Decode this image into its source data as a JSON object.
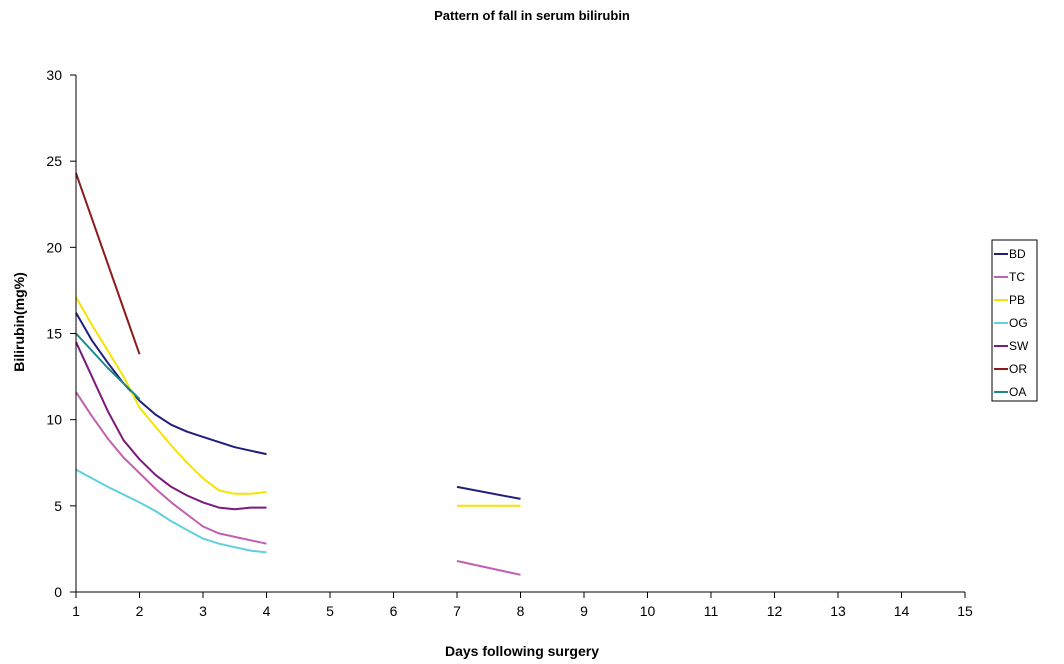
{
  "chart_data": {
    "type": "line",
    "title": "Pattern of fall in serum bilirubin",
    "xlabel": "Days following surgery",
    "ylabel": "Bilirubin(mg%)",
    "xlim": [
      1,
      15
    ],
    "ylim": [
      0,
      30
    ],
    "x_ticks": [
      1,
      2,
      3,
      4,
      5,
      6,
      7,
      8,
      9,
      10,
      11,
      12,
      13,
      14,
      15
    ],
    "y_ticks": [
      0,
      5,
      10,
      15,
      20,
      25,
      30
    ],
    "grid": false,
    "legend": "right",
    "series": [
      {
        "name": "BD",
        "color": "#1f1f7a",
        "segments": [
          [
            [
              1,
              16.2
            ],
            [
              1.25,
              14.6
            ],
            [
              1.5,
              13.3
            ],
            [
              1.75,
              12.1
            ],
            [
              2,
              11.1
            ],
            [
              2.25,
              10.3
            ],
            [
              2.5,
              9.7
            ],
            [
              2.75,
              9.3
            ],
            [
              3,
              9.0
            ],
            [
              3.25,
              8.7
            ],
            [
              3.5,
              8.4
            ],
            [
              3.75,
              8.2
            ],
            [
              4,
              8.0
            ]
          ],
          [
            [
              7,
              6.1
            ],
            [
              8,
              5.4
            ]
          ]
        ]
      },
      {
        "name": "TC",
        "color": "#c060b0",
        "segments": [
          [
            [
              1,
              11.6
            ],
            [
              1.25,
              10.2
            ],
            [
              1.5,
              8.9
            ],
            [
              1.75,
              7.8
            ],
            [
              2,
              6.9
            ],
            [
              2.25,
              6.0
            ],
            [
              2.5,
              5.2
            ],
            [
              2.75,
              4.5
            ],
            [
              3,
              3.8
            ],
            [
              3.25,
              3.4
            ],
            [
              3.5,
              3.2
            ],
            [
              3.75,
              3.0
            ],
            [
              4,
              2.8
            ]
          ],
          [
            [
              7,
              1.8
            ],
            [
              8,
              1.0
            ]
          ]
        ]
      },
      {
        "name": "PB",
        "color": "#f5e400",
        "segments": [
          [
            [
              1,
              17.1
            ],
            [
              1.25,
              15.5
            ],
            [
              1.5,
              14.0
            ],
            [
              1.75,
              12.5
            ],
            [
              2,
              10.7
            ],
            [
              2.25,
              9.6
            ],
            [
              2.5,
              8.5
            ],
            [
              2.75,
              7.5
            ],
            [
              3,
              6.6
            ],
            [
              3.25,
              5.9
            ],
            [
              3.5,
              5.7
            ],
            [
              3.75,
              5.7
            ],
            [
              4,
              5.8
            ]
          ],
          [
            [
              7,
              5.0
            ],
            [
              8,
              5.0
            ]
          ]
        ]
      },
      {
        "name": "OG",
        "color": "#5fd0dc",
        "segments": [
          [
            [
              1,
              7.1
            ],
            [
              1.5,
              6.1
            ],
            [
              2,
              5.2
            ],
            [
              2.25,
              4.7
            ],
            [
              2.5,
              4.1
            ],
            [
              2.75,
              3.6
            ],
            [
              3,
              3.1
            ],
            [
              3.25,
              2.8
            ],
            [
              3.5,
              2.6
            ],
            [
              3.75,
              2.4
            ],
            [
              4,
              2.3
            ]
          ]
        ]
      },
      {
        "name": "SW",
        "color": "#7a1a7a",
        "segments": [
          [
            [
              1,
              14.5
            ],
            [
              1.25,
              12.5
            ],
            [
              1.5,
              10.5
            ],
            [
              1.75,
              8.8
            ],
            [
              2,
              7.7
            ],
            [
              2.25,
              6.8
            ],
            [
              2.5,
              6.1
            ],
            [
              2.75,
              5.6
            ],
            [
              3,
              5.2
            ],
            [
              3.25,
              4.9
            ],
            [
              3.5,
              4.8
            ],
            [
              3.75,
              4.9
            ],
            [
              4,
              4.9
            ]
          ]
        ]
      },
      {
        "name": "OR",
        "color": "#8b1a1a",
        "segments": [
          [
            [
              1,
              24.3
            ],
            [
              2,
              13.8
            ]
          ]
        ]
      },
      {
        "name": "OA",
        "color": "#1a8a8a",
        "segments": [
          [
            [
              1,
              15.0
            ],
            [
              1.5,
              13.0
            ],
            [
              2,
              11.2
            ]
          ]
        ]
      }
    ]
  }
}
